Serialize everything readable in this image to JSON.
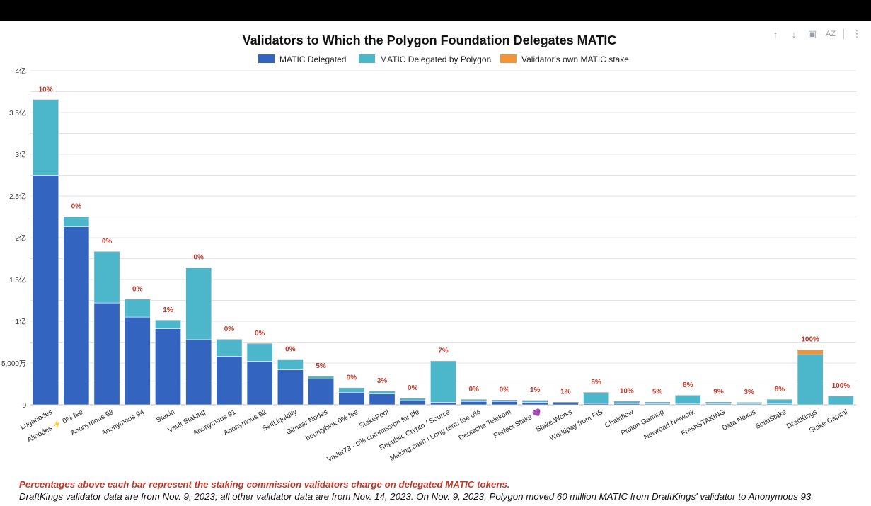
{
  "toolbar": {
    "sort_up_icon": "arrow-up-icon",
    "sort_down_icon": "arrow-down-icon",
    "chart_icon": "chart-settings-icon",
    "sort_az_icon": "sort-az-icon",
    "more_icon": "more-vert-icon",
    "glyph_up": "↑",
    "glyph_down": "↓",
    "glyph_chart": "▣",
    "glyph_az": "A͢Z",
    "glyph_more": "⋮"
  },
  "colors": {
    "delegated": "#3264c0",
    "by_polygon": "#4cb6cb",
    "own_stake": "#f0953a",
    "commission": "#c0392b",
    "grid": "#e3e3e3"
  },
  "chart_data": {
    "type": "bar",
    "stacked": true,
    "title": "Validators to Which the Polygon Foundation Delegates MATIC",
    "xlabel": "",
    "ylabel": "",
    "ylim": [
      0,
      400000000
    ],
    "y_ticks": [
      {
        "value": 0,
        "label": "0"
      },
      {
        "value": 50000000,
        "label": "5,000万"
      },
      {
        "value": 100000000,
        "label": "1亿"
      },
      {
        "value": 150000000,
        "label": "1.5亿"
      },
      {
        "value": 200000000,
        "label": "2亿"
      },
      {
        "value": 250000000,
        "label": "2.5亿"
      },
      {
        "value": 300000000,
        "label": "3亿"
      },
      {
        "value": 350000000,
        "label": "3.5亿"
      },
      {
        "value": 400000000,
        "label": "4亿"
      }
    ],
    "legend_position": "top",
    "categories": [
      "Luganodes",
      "Allnodes ⚡ 0% fee",
      "Anonymous 93",
      "Anonymous 94",
      "Stakin",
      "Vault Staking",
      "Anonymous 91",
      "Anonymous 92",
      "SelfLiquidity",
      "Gimaar Nodes",
      "bountyblok 0% fee",
      "StakePool",
      "Vader73 - 0% commission for life",
      "Republic Crypto / Source",
      "Making.cash | Long term fee 0%",
      "Deutsche Telekom",
      "Perfect Stake 💜",
      "Stake.Works",
      "Worldpay from FIS",
      "Chainflow",
      "Proton Gaming",
      "Newroad Network",
      "FreshSTAKING",
      "Data Nexus",
      "SolidStake",
      "DraftKings",
      "Stake Capital"
    ],
    "series": [
      {
        "name": "MATIC Delegated",
        "color": "#3264c0",
        "values": [
          275000000,
          213000000,
          122000000,
          105000000,
          91000000,
          78000000,
          58000000,
          52000000,
          42000000,
          31000000,
          15000000,
          13000000,
          5000000,
          3000000,
          4000000,
          4000000,
          3000000,
          2000000,
          1500000,
          1500000,
          1000000,
          1000000,
          1000000,
          1000000,
          1000000,
          0,
          0
        ]
      },
      {
        "name": "MATIC Delegated by Polygon",
        "color": "#4cb6cb",
        "values": [
          90000000,
          12000000,
          61000000,
          21000000,
          10000000,
          86000000,
          20000000,
          21000000,
          12000000,
          3000000,
          5000000,
          3000000,
          2500000,
          49000000,
          2000000,
          1500000,
          2000000,
          1000000,
          12500000,
          2500000,
          2000000,
          10000000,
          2000000,
          1500000,
          5000000,
          60000000,
          10000000
        ]
      },
      {
        "name": "Validator's own MATIC stake",
        "color": "#f0953a",
        "values": [
          0,
          0,
          0,
          0,
          0,
          0,
          0,
          0,
          0,
          0,
          0,
          0,
          0,
          0,
          0,
          0,
          0,
          0,
          500000,
          0,
          0,
          0,
          0,
          0,
          0,
          5500000,
          0
        ]
      }
    ],
    "commission_labels": [
      "10%",
      "0%",
      "0%",
      "0%",
      "1%",
      "0%",
      "0%",
      "0%",
      "0%",
      "5%",
      "0%",
      "3%",
      "0%",
      "7%",
      "0%",
      "0%",
      "1%",
      "1%",
      "5%",
      "10%",
      "5%",
      "8%",
      "9%",
      "3%",
      "8%",
      "100%",
      "100%"
    ]
  },
  "notes": {
    "line1": "Percentages above each bar represent the staking commission validators charge on delegated MATIC tokens.",
    "line2": "DraftKings validator data are from Nov. 9, 2023; all other validator data are from Nov. 14, 2023. On Nov. 9, 2023, Polygon moved 60 million MATIC from DraftKings' validator to Anonymous 93."
  }
}
